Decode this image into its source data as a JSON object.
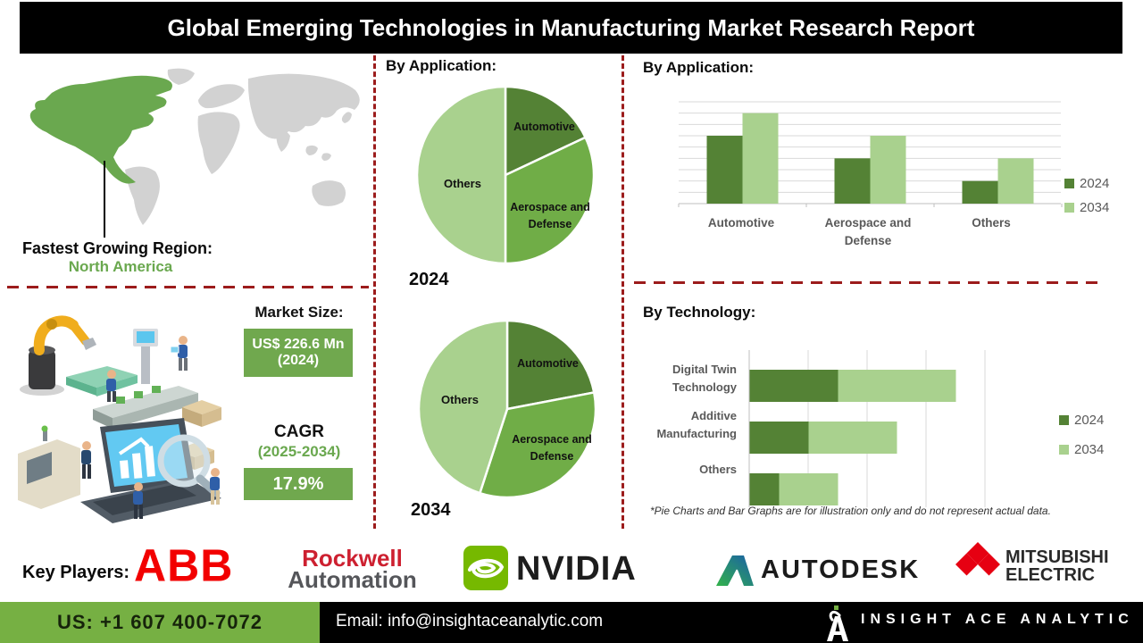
{
  "title": "Global Emerging Technologies in Manufacturing Market Research Report",
  "region": {
    "label": "Fastest Growing Region:",
    "value": "North America"
  },
  "market": {
    "size_label": "Market Size:",
    "size_value": "US$ 226.6 Mn (2024)",
    "cagr_label": "CAGR",
    "cagr_period": "(2025-2034)",
    "cagr_value": "17.9%"
  },
  "sections": {
    "pie_heading": "By Application:",
    "bar_heading": "By Application:",
    "tech_heading": "By Technology:",
    "footnote": "*Pie Charts and Bar Graphs are for illustration only and do not represent actual data."
  },
  "chart_data": [
    {
      "type": "pie",
      "title": "By Application:",
      "year_label": "2024",
      "labels": [
        "Automotive",
        "Aerospace and Defense",
        "Others"
      ],
      "values": [
        18,
        32,
        50
      ],
      "unit": "percent (visually estimated, chart is illustrative)",
      "colors": [
        "#548235",
        "#70ad47",
        "#a9d18e"
      ]
    },
    {
      "type": "pie",
      "title": "By Application:",
      "year_label": "2034",
      "labels": [
        "Automotive",
        "Aerospace and Defense",
        "Others"
      ],
      "values": [
        22,
        33,
        45
      ],
      "unit": "percent (visually estimated, chart is illustrative)",
      "colors": [
        "#548235",
        "#70ad47",
        "#a9d18e"
      ]
    },
    {
      "type": "bar",
      "title": "By Application:",
      "categories": [
        "Automotive",
        "Aerospace and Defense",
        "Others"
      ],
      "series": [
        {
          "name": "2024",
          "color": "#548235",
          "values": [
            6,
            4,
            2
          ]
        },
        {
          "name": "2034",
          "color": "#a9d18e",
          "values": [
            8,
            6,
            4
          ]
        }
      ],
      "ylim": [
        0,
        9
      ],
      "grid": true,
      "legend_position": "right",
      "unit": "illustrative units read from unlabeled gridlines"
    },
    {
      "type": "bar-horizontal-stacked",
      "title": "By Technology:",
      "categories": [
        "Digital Twin Technology",
        "Additive Manufacturing",
        "Others"
      ],
      "series": [
        {
          "name": "2024",
          "color": "#548235",
          "values": [
            1.5,
            1.0,
            0.5
          ]
        },
        {
          "name": "2034",
          "color": "#a9d18e",
          "values": [
            2.0,
            1.5,
            1.0
          ]
        }
      ],
      "xlim": [
        0,
        4
      ],
      "grid": true,
      "legend_position": "right",
      "unit": "illustrative units read from unlabeled gridlines"
    }
  ],
  "key_players": {
    "label": "Key Players:",
    "companies": [
      "ABB",
      "Rockwell Automation",
      "NVIDIA",
      "AUTODESK",
      "MITSUBISHI ELECTRIC"
    ],
    "logos": {
      "abb": "ABB",
      "rockwell_top": "Rockwell",
      "rockwell_bottom": "Automation",
      "nvidia": "NVIDIA",
      "autodesk": "AUTODESK",
      "mitsubishi_top": "MITSUBISHI",
      "mitsubishi_bottom": "ELECTRIC"
    }
  },
  "footer": {
    "phone": "US: +1 607 400-7072",
    "email": "Email: info@insightaceanalytic.com",
    "brand": "INSIGHT ACE ANALYTIC"
  },
  "colors": {
    "dark_green": "#548235",
    "mid_green": "#70ad47",
    "light_green": "#a9d18e",
    "accent_dashed_red": "#9c1c1c",
    "footer_green": "#76b043",
    "region_green": "#6aa84f",
    "abb_red": "#f20000",
    "nvidia_green": "#76b900",
    "mitsubishi_red": "#e60012"
  }
}
